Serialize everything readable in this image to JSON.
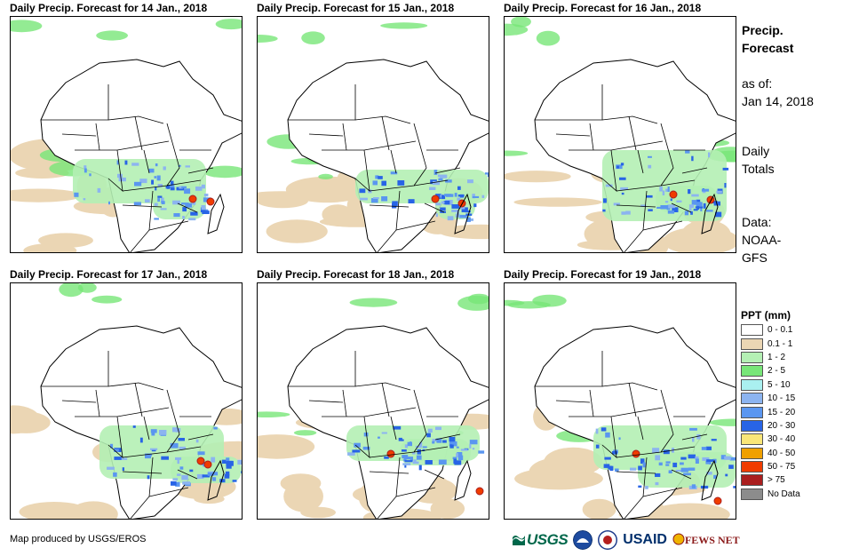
{
  "panels": [
    {
      "title": "Daily Precip. Forecast for 14 Jan., 2018"
    },
    {
      "title": "Daily Precip. Forecast for 15 Jan., 2018"
    },
    {
      "title": "Daily Precip. Forecast for 16 Jan., 2018"
    },
    {
      "title": "Daily Precip. Forecast for 17 Jan., 2018"
    },
    {
      "title": "Daily Precip. Forecast for 18 Jan., 2018"
    },
    {
      "title": "Daily Precip. Forecast for 19 Jan., 2018"
    }
  ],
  "info": {
    "title_line1": "Precip.",
    "title_line2": "Forecast",
    "asof_label": "as of:",
    "asof_date": "Jan 14, 2018",
    "totals_line1": "Daily",
    "totals_line2": "Totals",
    "data_line1": "Data:",
    "data_line2": "NOAA-",
    "data_line3": "GFS"
  },
  "legend": {
    "title": "PPT (mm)",
    "items": [
      {
        "label": "0 - 0.1",
        "color": "#ffffff"
      },
      {
        "label": "0.1 - 1",
        "color": "#ebd6b4"
      },
      {
        "label": "1 - 2",
        "color": "#b4f0b4"
      },
      {
        "label": "2 - 5",
        "color": "#78e678"
      },
      {
        "label": "5 - 10",
        "color": "#aaf0f0"
      },
      {
        "label": "10 - 15",
        "color": "#8cb4f0"
      },
      {
        "label": "15 - 20",
        "color": "#5a96f0"
      },
      {
        "label": "20 - 30",
        "color": "#2864e6"
      },
      {
        "label": "30 - 40",
        "color": "#fae678"
      },
      {
        "label": "40 - 50",
        "color": "#f0a000"
      },
      {
        "label": "50 - 75",
        "color": "#f03c00"
      },
      {
        "label": "> 75",
        "color": "#aa1e1e"
      },
      {
        "label": "No Data",
        "color": "#8c8c8c"
      }
    ]
  },
  "credit": "Map produced by USGS/EROS",
  "logos": {
    "usgs": "USGS",
    "usaid": "USAID",
    "fews": "FEWS NET"
  }
}
